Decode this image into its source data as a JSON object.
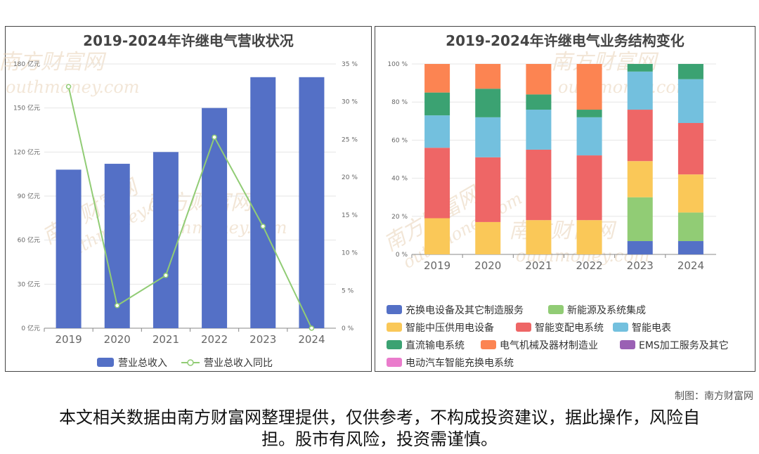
{
  "credit": "制图：南方财富网",
  "disclaimer": "本文相关数据由南方财富网整理提供，仅供参考，不构成投资建议，据此操作，风险自担。股市有风险，投资需谨慎。",
  "watermark": {
    "cn": "南方财富网",
    "en": "outhmoney.com"
  },
  "chart_data": [
    {
      "type": "bar",
      "title": "2019-2024年许继电气营收状况",
      "categories": [
        "2019",
        "2020",
        "2021",
        "2022",
        "2023",
        "2024"
      ],
      "series": [
        {
          "name": "营业总收入",
          "kind": "bar",
          "axis": "left",
          "color": "#5470c6",
          "values": [
            108,
            112,
            120,
            150,
            171,
            171
          ]
        },
        {
          "name": "营业总收入同比",
          "kind": "line",
          "axis": "right",
          "color": "#91cc75",
          "values": [
            32,
            3,
            7,
            25.3,
            13.5,
            0
          ]
        }
      ],
      "y_left": {
        "ylim": [
          0,
          180
        ],
        "ticks": [
          0,
          30,
          60,
          90,
          120,
          150,
          180
        ],
        "unit": "亿元"
      },
      "y_right": {
        "ylim": [
          0,
          35
        ],
        "ticks": [
          0,
          5,
          10,
          15,
          20,
          25,
          30,
          35
        ],
        "unit": "%"
      },
      "legend_position": "bottom",
      "grid": true
    },
    {
      "type": "bar",
      "stacked": true,
      "title": "2019-2024年许继电气业务结构变化",
      "categories": [
        "2019",
        "2020",
        "2021",
        "2022",
        "2023",
        "2024"
      ],
      "ylim": [
        0,
        100
      ],
      "y_ticks": [
        0,
        20,
        40,
        60,
        80,
        100
      ],
      "y_unit": "%",
      "legend_position": "bottom",
      "series": [
        {
          "name": "充换电设备及其它制造服务",
          "color": "#5470c6",
          "values": [
            0,
            0,
            0,
            0,
            7,
            7
          ]
        },
        {
          "name": "新能源及系统集成",
          "color": "#91cc75",
          "values": [
            0,
            0,
            0,
            0,
            23,
            15
          ]
        },
        {
          "name": "智能中压供用电设备",
          "color": "#fac858",
          "values": [
            19,
            17,
            18,
            18,
            19,
            20
          ]
        },
        {
          "name": "智能变配电系统",
          "color": "#ee6666",
          "values": [
            37,
            34,
            37,
            34,
            27,
            27
          ]
        },
        {
          "name": "智能电表",
          "color": "#73c0de",
          "values": [
            17,
            21,
            21,
            20,
            20,
            23
          ]
        },
        {
          "name": "直流输电系统",
          "color": "#3ba272",
          "values": [
            12,
            15,
            8,
            4,
            4,
            8
          ]
        },
        {
          "name": "电气机械及器材制造业",
          "color": "#fc8452",
          "values": [
            15,
            13,
            16,
            24,
            0,
            0
          ]
        },
        {
          "name": "EMS加工服务及其它",
          "color": "#9a60b4",
          "values": [
            0,
            0,
            0,
            0,
            0,
            0
          ]
        },
        {
          "name": "电动汽车智能充换电系统",
          "color": "#ea7ccc",
          "values": [
            0,
            0,
            0,
            0,
            0,
            0
          ]
        }
      ]
    }
  ]
}
